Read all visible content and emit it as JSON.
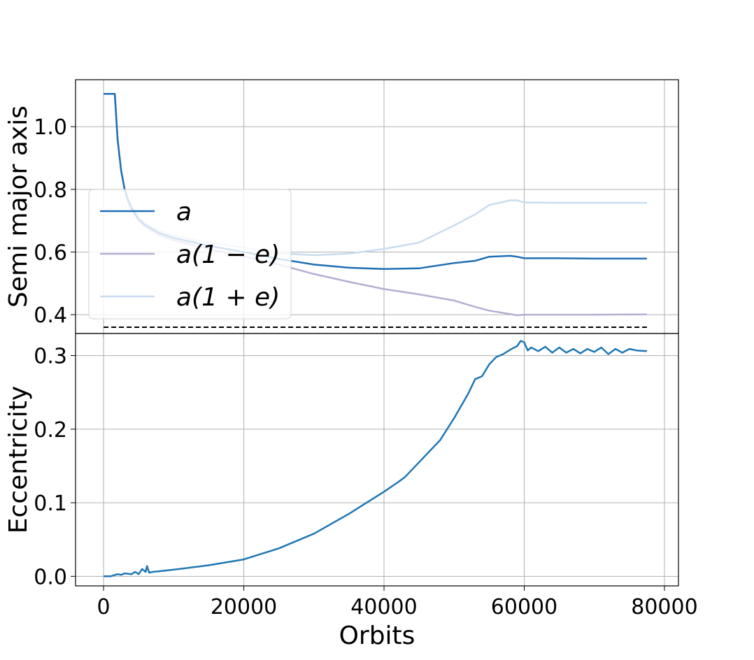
{
  "chart_data": [
    {
      "type": "line",
      "ylabel": "Semi major axis",
      "xlim": [
        -4000,
        82000
      ],
      "ylim": [
        0.34,
        1.15
      ],
      "grid": true,
      "legend": {
        "placement": "center-left",
        "entries": [
          {
            "label": "a",
            "color": "#1f6fb4"
          },
          {
            "label": "a(1 − e)",
            "color": "#b4aed4"
          },
          {
            "label": "a(1 + e)",
            "color": "#c9dcf0"
          }
        ]
      },
      "xticks": [
        0,
        20000,
        40000,
        60000,
        80000
      ],
      "yticks": [
        0.4,
        0.6,
        0.8,
        1.0
      ],
      "ytick_labels": [
        "0.4",
        "0.6",
        "0.8",
        "1.0"
      ],
      "reference_line": {
        "y": 0.36,
        "x": [
          0,
          77500
        ],
        "style": "dashed",
        "color": "#000000"
      },
      "series": [
        {
          "label": "a",
          "color": "#1f6fb4",
          "x": [
            0,
            1600,
            1700,
            2000,
            2500,
            3000,
            3500,
            4000,
            5000,
            6000,
            8000,
            10000,
            15000,
            20000,
            25000,
            30000,
            35000,
            40000,
            45000,
            50000,
            53000,
            55000,
            58000,
            59000,
            60000,
            62000,
            65000,
            70000,
            77500
          ],
          "y": [
            1.105,
            1.105,
            1.07,
            0.96,
            0.86,
            0.8,
            0.765,
            0.74,
            0.705,
            0.685,
            0.66,
            0.645,
            0.62,
            0.6,
            0.578,
            0.56,
            0.55,
            0.546,
            0.548,
            0.565,
            0.572,
            0.585,
            0.588,
            0.585,
            0.58,
            0.58,
            0.58,
            0.579,
            0.579
          ]
        },
        {
          "label": "a(1 − e)",
          "color": "#b4aed4",
          "x": [
            0,
            1600,
            1700,
            2000,
            2500,
            3000,
            3500,
            4000,
            5000,
            6000,
            8000,
            10000,
            15000,
            20000,
            25000,
            30000,
            35000,
            40000,
            45000,
            50000,
            53000,
            55000,
            58000,
            59000,
            60000,
            62000,
            65000,
            70000,
            77500
          ],
          "y": [
            1.105,
            1.105,
            1.07,
            0.96,
            0.86,
            0.8,
            0.762,
            0.735,
            0.7,
            0.68,
            0.653,
            0.638,
            0.61,
            0.586,
            0.56,
            0.53,
            0.505,
            0.482,
            0.465,
            0.445,
            0.425,
            0.413,
            0.402,
            0.398,
            0.4,
            0.4,
            0.4,
            0.4,
            0.401
          ]
        },
        {
          "label": "a(1 + e)",
          "color": "#c9dcf0",
          "x": [
            0,
            1600,
            1700,
            2000,
            2500,
            3000,
            3500,
            4000,
            5000,
            6000,
            8000,
            10000,
            15000,
            20000,
            25000,
            30000,
            35000,
            40000,
            45000,
            50000,
            53000,
            55000,
            58000,
            59000,
            60000,
            62000,
            65000,
            70000,
            77500
          ],
          "y": [
            1.105,
            1.105,
            1.07,
            0.96,
            0.86,
            0.8,
            0.768,
            0.745,
            0.71,
            0.69,
            0.667,
            0.652,
            0.63,
            0.614,
            0.596,
            0.59,
            0.595,
            0.61,
            0.63,
            0.685,
            0.72,
            0.75,
            0.765,
            0.765,
            0.758,
            0.758,
            0.757,
            0.757,
            0.757
          ]
        }
      ]
    },
    {
      "type": "line",
      "xlabel": "Orbits",
      "ylabel": "Eccentricity",
      "xlim": [
        -4000,
        82000
      ],
      "ylim": [
        -0.013,
        0.33
      ],
      "grid": true,
      "xticks": [
        0,
        20000,
        40000,
        60000,
        80000
      ],
      "xtick_labels": [
        "0",
        "20000",
        "40000",
        "60000",
        "80000"
      ],
      "yticks": [
        0.0,
        0.1,
        0.2,
        0.3
      ],
      "ytick_labels": [
        "0.0",
        "0.1",
        "0.2",
        "0.3"
      ],
      "series": [
        {
          "label": "Eccentricity",
          "color": "#1f77b4",
          "x": [
            0,
            1000,
            2000,
            2500,
            3000,
            4000,
            4500,
            5000,
            5500,
            6000,
            6200,
            6500,
            7000,
            8000,
            10000,
            15000,
            20000,
            25000,
            30000,
            35000,
            38000,
            40000,
            42000,
            43000,
            45000,
            48000,
            50000,
            52000,
            53000,
            54000,
            55000,
            56000,
            57000,
            58000,
            59000,
            59500,
            60000,
            60500,
            61000,
            62000,
            63000,
            64000,
            65000,
            66000,
            67000,
            68000,
            69000,
            70000,
            71000,
            72000,
            73000,
            74000,
            75000,
            76000,
            77500
          ],
          "y": [
            0.0,
            0.0,
            0.003,
            0.002,
            0.004,
            0.003,
            0.006,
            0.003,
            0.01,
            0.006,
            0.014,
            0.005,
            0.006,
            0.007,
            0.009,
            0.015,
            0.023,
            0.038,
            0.058,
            0.085,
            0.103,
            0.115,
            0.128,
            0.135,
            0.155,
            0.185,
            0.215,
            0.248,
            0.268,
            0.272,
            0.288,
            0.298,
            0.302,
            0.308,
            0.313,
            0.32,
            0.318,
            0.307,
            0.311,
            0.306,
            0.312,
            0.304,
            0.311,
            0.304,
            0.309,
            0.303,
            0.309,
            0.305,
            0.311,
            0.302,
            0.309,
            0.304,
            0.309,
            0.307,
            0.306
          ]
        }
      ]
    }
  ]
}
